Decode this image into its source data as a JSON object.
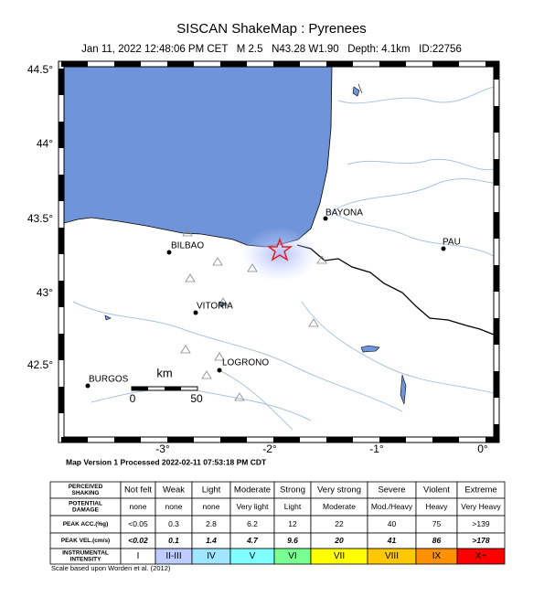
{
  "header": {
    "title": "SISCAN ShakeMap : Pyrenees",
    "subtitle": "Jan 11, 2022 12:48:06 PM CET   M 2.5   N43.28 W1.90   Depth: 4.1km   ID:22756"
  },
  "map": {
    "lat_labels": [
      "44.5°",
      "44°",
      "43.5°",
      "43°",
      "42.5°"
    ],
    "lon_labels": [
      "-3°",
      "-2°",
      "-1°",
      "0°"
    ],
    "cities": [
      "BAYONA",
      "PAU",
      "BILBAO",
      "VITORIA",
      "LOGRONO",
      "BURGOS"
    ],
    "scale": {
      "unit": "km",
      "start": "0",
      "end": "50"
    }
  },
  "footer": {
    "version": "Map Version 1 Processed 2022-02-11 07:53:18 PM CDT",
    "credit": "Scale based upon Worden et al. (2012)"
  },
  "legend": {
    "intensity_colors": [
      "#ffffff",
      "#bfccff",
      "#a0e6ff",
      "#80ffff",
      "#7aff93",
      "#ffff00",
      "#ffc800",
      "#ff9100",
      "#ff0000"
    ],
    "rows": [
      {
        "label": [
          "PERCEIVED",
          "SHAKING"
        ],
        "cells": [
          "Not felt",
          "Weak",
          "Light",
          "Moderate",
          "Strong",
          "Very strong",
          "Severe",
          "Violent",
          "Extreme"
        ]
      },
      {
        "label": [
          "POTENTIAL",
          "DAMAGE"
        ],
        "cells": [
          "none",
          "none",
          "none",
          "Very light",
          "Light",
          "Moderate",
          "Mod./Heavy",
          "Heavy",
          "Very Heavy"
        ]
      },
      {
        "label": [
          "PEAK ACC.(%g)"
        ],
        "cells": [
          "<0.05",
          "0.3",
          "2.8",
          "6.2",
          "12",
          "22",
          "40",
          "75",
          ">139"
        ]
      },
      {
        "label": [
          "PEAK VEL.(cm/s)"
        ],
        "cells": [
          "<0.02",
          "0.1",
          "1.4",
          "4.7",
          "9.6",
          "20",
          "41",
          "86",
          ">178"
        ]
      },
      {
        "label": [
          "INSTRUMENTAL",
          "INTENSITY"
        ],
        "cells": [
          "I",
          "II-III",
          "IV",
          "V",
          "VI",
          "VII",
          "VIII",
          "IX",
          "X+"
        ]
      }
    ]
  }
}
